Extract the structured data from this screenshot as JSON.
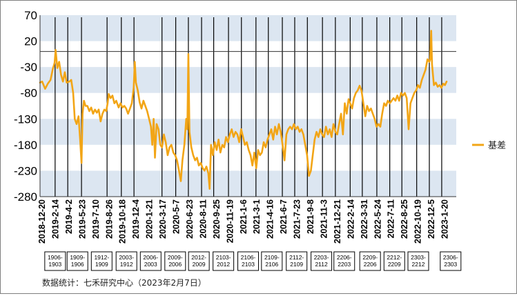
{
  "chart_data": {
    "type": "line",
    "series": [
      {
        "name": "基差",
        "color": "#F2A516",
        "points": [
          [
            "2018-12-20",
            -60
          ],
          [
            "2018-12-28",
            -58
          ],
          [
            "2019-01-08",
            -72
          ],
          [
            "2019-01-18",
            -62
          ],
          [
            "2019-01-28",
            -55
          ],
          [
            "2019-02-05",
            -35
          ],
          [
            "2019-02-12",
            -22
          ],
          [
            "2019-02-16",
            3
          ],
          [
            "2019-02-22",
            -32
          ],
          [
            "2019-03-01",
            -20
          ],
          [
            "2019-03-08",
            -45
          ],
          [
            "2019-03-15",
            -58
          ],
          [
            "2019-03-22",
            -40
          ],
          [
            "2019-03-29",
            -60
          ],
          [
            "2019-04-08",
            -58
          ],
          [
            "2019-04-15",
            -55
          ],
          [
            "2019-04-22",
            -80
          ],
          [
            "2019-04-28",
            -130
          ],
          [
            "2019-05-05",
            -140
          ],
          [
            "2019-05-12",
            -125
          ],
          [
            "2019-05-18",
            -170
          ],
          [
            "2019-05-23",
            -215
          ],
          [
            "2019-05-27",
            -120
          ],
          [
            "2019-06-01",
            -95
          ],
          [
            "2019-06-07",
            -105
          ],
          [
            "2019-06-14",
            -105
          ],
          [
            "2019-06-21",
            -115
          ],
          [
            "2019-06-28",
            -108
          ],
          [
            "2019-07-05",
            -120
          ],
          [
            "2019-07-12",
            -112
          ],
          [
            "2019-07-19",
            -118
          ],
          [
            "2019-07-26",
            -112
          ],
          [
            "2019-08-02",
            -135
          ],
          [
            "2019-08-09",
            -120
          ],
          [
            "2019-08-16",
            -112
          ],
          [
            "2019-08-23",
            -115
          ],
          [
            "2019-08-28",
            -100
          ],
          [
            "2019-09-01",
            -82
          ],
          [
            "2019-09-08",
            -90
          ],
          [
            "2019-09-15",
            -85
          ],
          [
            "2019-09-22",
            -100
          ],
          [
            "2019-09-29",
            -95
          ],
          [
            "2019-10-08",
            -108
          ],
          [
            "2019-10-15",
            -100
          ],
          [
            "2019-10-22",
            -108
          ],
          [
            "2019-10-29",
            -105
          ],
          [
            "2019-11-05",
            -110
          ],
          [
            "2019-11-12",
            -120
          ],
          [
            "2019-11-19",
            -110
          ],
          [
            "2019-11-26",
            -100
          ],
          [
            "2019-12-03",
            -70
          ],
          [
            "2019-12-07",
            -20
          ],
          [
            "2019-12-11",
            -60
          ],
          [
            "2019-12-18",
            -75
          ],
          [
            "2019-12-25",
            -98
          ],
          [
            "2020-01-01",
            -110
          ],
          [
            "2020-01-08",
            -95
          ],
          [
            "2020-01-15",
            -105
          ],
          [
            "2020-01-22",
            -115
          ],
          [
            "2020-01-29",
            -130
          ],
          [
            "2020-02-05",
            -145
          ],
          [
            "2020-02-10",
            -180
          ],
          [
            "2020-02-15",
            -130
          ],
          [
            "2020-02-20",
            -205
          ],
          [
            "2020-02-26",
            -140
          ],
          [
            "2020-03-04",
            -150
          ],
          [
            "2020-03-11",
            -180
          ],
          [
            "2020-03-17",
            -185
          ],
          [
            "2020-03-24",
            -160
          ],
          [
            "2020-03-31",
            -175
          ],
          [
            "2020-04-07",
            -200
          ],
          [
            "2020-04-14",
            -185
          ],
          [
            "2020-04-21",
            -180
          ],
          [
            "2020-04-28",
            -195
          ],
          [
            "2020-05-05",
            -200
          ],
          [
            "2020-05-12",
            -210
          ],
          [
            "2020-05-19",
            -230
          ],
          [
            "2020-05-26",
            -250
          ],
          [
            "2020-06-01",
            -210
          ],
          [
            "2020-06-08",
            -180
          ],
          [
            "2020-06-15",
            -130
          ],
          [
            "2020-06-19",
            -150
          ],
          [
            "2020-06-23",
            -5
          ],
          [
            "2020-06-27",
            -155
          ],
          [
            "2020-07-04",
            -185
          ],
          [
            "2020-07-11",
            -200
          ],
          [
            "2020-07-18",
            -210
          ],
          [
            "2020-07-25",
            -205
          ],
          [
            "2020-08-01",
            -220
          ],
          [
            "2020-08-08",
            -215
          ],
          [
            "2020-08-15",
            -225
          ],
          [
            "2020-08-22",
            -230
          ],
          [
            "2020-08-29",
            -222
          ],
          [
            "2020-09-05",
            -235
          ],
          [
            "2020-09-10",
            -265
          ],
          [
            "2020-09-15",
            -180
          ],
          [
            "2020-09-22",
            -200
          ],
          [
            "2020-09-29",
            -175
          ],
          [
            "2020-10-06",
            -190
          ],
          [
            "2020-10-13",
            -170
          ],
          [
            "2020-10-20",
            -195
          ],
          [
            "2020-10-27",
            -180
          ],
          [
            "2020-11-03",
            -185
          ],
          [
            "2020-11-10",
            -165
          ],
          [
            "2020-11-17",
            -175
          ],
          [
            "2020-11-24",
            -160
          ],
          [
            "2020-12-01",
            -150
          ],
          [
            "2020-12-08",
            -165
          ],
          [
            "2020-12-15",
            -155
          ],
          [
            "2020-12-22",
            -160
          ],
          [
            "2020-12-29",
            -175
          ],
          [
            "2021-01-05",
            -150
          ],
          [
            "2021-01-12",
            -165
          ],
          [
            "2021-01-19",
            -180
          ],
          [
            "2021-01-26",
            -175
          ],
          [
            "2021-02-02",
            -190
          ],
          [
            "2021-02-09",
            -200
          ],
          [
            "2021-02-16",
            -220
          ],
          [
            "2021-02-23",
            -195
          ],
          [
            "2021-03-02",
            -225
          ],
          [
            "2021-03-09",
            -190
          ],
          [
            "2021-03-16",
            -200
          ],
          [
            "2021-03-23",
            -195
          ],
          [
            "2021-03-30",
            -175
          ],
          [
            "2021-04-06",
            -185
          ],
          [
            "2021-04-13",
            -170
          ],
          [
            "2021-04-20",
            -160
          ],
          [
            "2021-04-27",
            -150
          ],
          [
            "2021-05-04",
            -170
          ],
          [
            "2021-05-11",
            -145
          ],
          [
            "2021-05-18",
            -160
          ],
          [
            "2021-05-25",
            -140
          ],
          [
            "2021-06-01",
            -155
          ],
          [
            "2021-06-08",
            -180
          ],
          [
            "2021-06-15",
            -210
          ],
          [
            "2021-06-22",
            -160
          ],
          [
            "2021-06-29",
            -150
          ],
          [
            "2021-07-06",
            -145
          ],
          [
            "2021-07-13",
            -150
          ],
          [
            "2021-07-20",
            -140
          ],
          [
            "2021-07-27",
            -150
          ],
          [
            "2021-08-03",
            -145
          ],
          [
            "2021-08-10",
            -155
          ],
          [
            "2021-08-17",
            -150
          ],
          [
            "2021-08-24",
            -160
          ],
          [
            "2021-08-31",
            -180
          ],
          [
            "2021-09-07",
            -200
          ],
          [
            "2021-09-14",
            -240
          ],
          [
            "2021-09-21",
            -230
          ],
          [
            "2021-09-28",
            -200
          ],
          [
            "2021-10-05",
            -170
          ],
          [
            "2021-10-12",
            -155
          ],
          [
            "2021-10-19",
            -165
          ],
          [
            "2021-10-26",
            -150
          ],
          [
            "2021-11-02",
            -160
          ],
          [
            "2021-11-09",
            -165
          ],
          [
            "2021-11-16",
            -145
          ],
          [
            "2021-11-23",
            -160
          ],
          [
            "2021-11-30",
            -150
          ],
          [
            "2021-12-07",
            -165
          ],
          [
            "2021-12-14",
            -140
          ],
          [
            "2021-12-21",
            -155
          ],
          [
            "2021-12-28",
            -160
          ],
          [
            "2022-01-04",
            -140
          ],
          [
            "2022-01-11",
            -120
          ],
          [
            "2022-01-18",
            -160
          ],
          [
            "2022-01-25",
            -100
          ],
          [
            "2022-02-01",
            -120
          ],
          [
            "2022-02-08",
            -92
          ],
          [
            "2022-02-14",
            -100
          ],
          [
            "2022-02-21",
            -110
          ],
          [
            "2022-02-28",
            -90
          ],
          [
            "2022-03-07",
            -80
          ],
          [
            "2022-03-14",
            -75
          ],
          [
            "2022-03-21",
            -66
          ],
          [
            "2022-03-28",
            -75
          ],
          [
            "2022-04-04",
            -100
          ],
          [
            "2022-04-11",
            -125
          ],
          [
            "2022-04-18",
            -105
          ],
          [
            "2022-04-25",
            -115
          ],
          [
            "2022-05-02",
            -110
          ],
          [
            "2022-05-09",
            -120
          ],
          [
            "2022-05-16",
            -130
          ],
          [
            "2022-05-23",
            -145
          ],
          [
            "2022-05-30",
            -140
          ],
          [
            "2022-06-06",
            -145
          ],
          [
            "2022-06-13",
            -120
          ],
          [
            "2022-06-20",
            -100
          ],
          [
            "2022-06-27",
            -105
          ],
          [
            "2022-07-04",
            -95
          ],
          [
            "2022-07-11",
            -100
          ],
          [
            "2022-07-18",
            -95
          ],
          [
            "2022-07-25",
            -90
          ],
          [
            "2022-08-01",
            -95
          ],
          [
            "2022-08-08",
            -85
          ],
          [
            "2022-08-15",
            -95
          ],
          [
            "2022-08-22",
            -80
          ],
          [
            "2022-08-29",
            -85
          ],
          [
            "2022-09-05",
            -80
          ],
          [
            "2022-09-12",
            -90
          ],
          [
            "2022-09-19",
            -150
          ],
          [
            "2022-09-26",
            -100
          ],
          [
            "2022-10-03",
            -90
          ],
          [
            "2022-10-10",
            -80
          ],
          [
            "2022-10-17",
            -75
          ],
          [
            "2022-10-24",
            -65
          ],
          [
            "2022-10-31",
            -70
          ],
          [
            "2022-11-07",
            -55
          ],
          [
            "2022-11-14",
            -45
          ],
          [
            "2022-11-21",
            -35
          ],
          [
            "2022-11-28",
            -15
          ],
          [
            "2022-12-05",
            -20
          ],
          [
            "2022-12-08",
            -15
          ],
          [
            "2022-12-12",
            40
          ],
          [
            "2022-12-15",
            -25
          ],
          [
            "2022-12-22",
            -65
          ],
          [
            "2022-12-29",
            -60
          ],
          [
            "2023-01-05",
            -68
          ],
          [
            "2023-01-12",
            -65
          ],
          [
            "2023-01-19",
            -70
          ],
          [
            "2023-01-26",
            -62
          ],
          [
            "2023-02-01",
            -65
          ],
          [
            "2023-02-07",
            -58
          ]
        ]
      }
    ],
    "x_dates": [
      "2018-12-20",
      "2019-2-14",
      "2019-4-2",
      "2019-5-23",
      "2019-7-10",
      "2019-8-26",
      "2019-10-18",
      "2019-12-4",
      "2020-1-21",
      "2020-3-17",
      "2020-5-7",
      "2020-6-23",
      "2020-8-11",
      "2020-9-25",
      "2020-11-19",
      "2021-1-6",
      "2021-3-1",
      "2021-4-16",
      "2021-6-7",
      "2021-7-23",
      "2021-9-8",
      "2021-11-3",
      "2021-12-21",
      "2022-2-14",
      "2022-3-31",
      "2022-5-24",
      "2022-7-11",
      "2022-8-25",
      "2022-10-19",
      "2022-12-5",
      "2023-1-20"
    ],
    "y_ticks": [
      "70",
      "20",
      "-30",
      "-80",
      "-130",
      "-180",
      "-230",
      "-280"
    ],
    "ylim": [
      -280,
      70
    ],
    "xlim": [
      "2018-12-20",
      "2023-03-15"
    ],
    "contract_vlines": [
      "2019-02-14",
      "2019-04-02",
      "2019-05-23",
      "2019-08-26",
      "2019-10-18",
      "2019-12-04",
      "2020-03-17",
      "2020-05-07",
      "2020-06-23",
      "2020-08-11",
      "2020-09-25",
      "2020-11-19",
      "2021-01-06",
      "2021-03-01",
      "2021-04-16",
      "2021-06-07",
      "2021-07-23",
      "2021-09-08",
      "2021-11-03",
      "2021-12-21",
      "2022-02-14",
      "2022-03-31",
      "2022-05-24",
      "2022-07-11",
      "2022-08-25",
      "2022-10-19",
      "2022-12-05",
      "2023-01-20"
    ],
    "contract_labels": [
      {
        "text": "1906-\n1903",
        "date": "2019-02-14"
      },
      {
        "text": "1909-\n1906",
        "date": "2019-05-08"
      },
      {
        "text": "1912-\n1909",
        "date": "2019-08-06"
      },
      {
        "text": "2003-\n1912",
        "date": "2019-11-06"
      },
      {
        "text": "2006-\n2003",
        "date": "2020-02-04"
      },
      {
        "text": "2009-\n2006",
        "date": "2020-05-05"
      },
      {
        "text": "2012-\n2009",
        "date": "2020-08-01"
      },
      {
        "text": "2103-\n2012",
        "date": "2020-10-31"
      },
      {
        "text": "2106-\n2103",
        "date": "2021-01-31"
      },
      {
        "text": "2109-\n2106",
        "date": "2021-04-29"
      },
      {
        "text": "2112-\n2109",
        "date": "2021-07-30"
      },
      {
        "text": "2203-\n2112",
        "date": "2021-10-30"
      },
      {
        "text": "2206-\n2203",
        "date": "2022-01-23"
      },
      {
        "text": "2209-\n2206",
        "date": "2022-04-29"
      },
      {
        "text": "2212-\n2209",
        "date": "2022-07-28"
      },
      {
        "text": "2303-\n2212",
        "date": "2022-10-25"
      },
      {
        "text": "2306-\n2303",
        "date": "2023-02-22"
      }
    ],
    "zero_line": 0,
    "band_color": "#DCE6F1",
    "grid": false,
    "legend_position": "right",
    "source_note": "数据统计：七禾研究中心（2023年2月7日）"
  }
}
